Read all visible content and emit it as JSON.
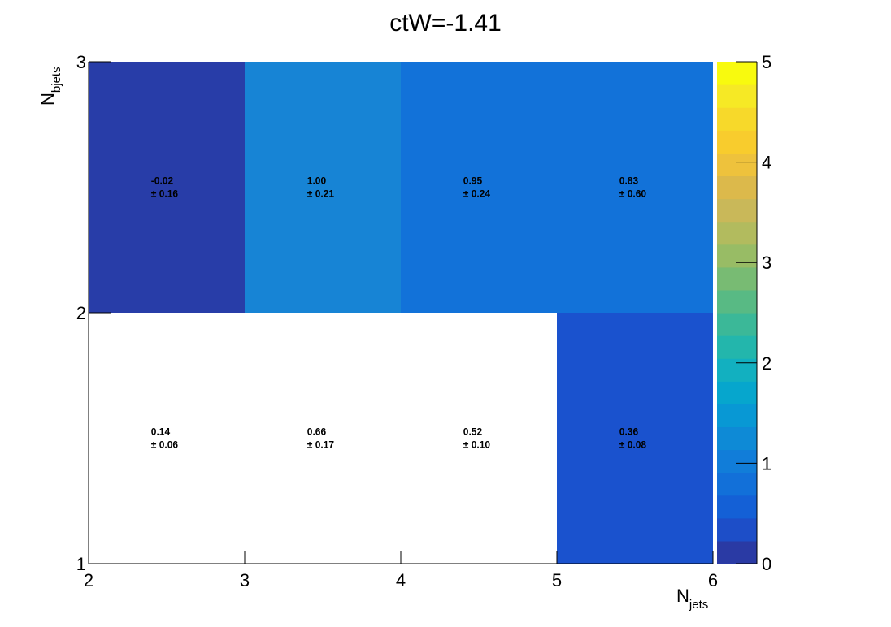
{
  "chart_data": {
    "type": "heatmap",
    "title": "ctW=-1.41",
    "xlabel": {
      "main": "N",
      "sub": "jets"
    },
    "ylabel": {
      "main": "N",
      "sub": "bjets"
    },
    "x_edges": [
      2,
      3,
      4,
      5,
      6
    ],
    "y_edges": [
      1,
      2,
      3
    ],
    "xlim": [
      2,
      6
    ],
    "ylim": [
      1,
      3
    ],
    "x_tick_labels": [
      "2",
      "3",
      "4",
      "5",
      "6"
    ],
    "y_tick_labels": [
      "1",
      "2",
      "3"
    ],
    "colorbar": {
      "range": [
        0,
        5
      ],
      "tick_labels": [
        "0",
        "1",
        "2",
        "3",
        "4",
        "5"
      ],
      "colors": [
        "#2a3aa4",
        "#1d4ec8",
        "#1460d6",
        "#1270d9",
        "#117dd9",
        "#0e8ad6",
        "#0898d4",
        "#06a6cd",
        "#12b0c0",
        "#23b6ac",
        "#3bb898",
        "#58ba84",
        "#78bb73",
        "#98bc65",
        "#b2bb5e",
        "#c9b859",
        "#dcb94b",
        "#eec23c",
        "#f8cc2d",
        "#f7d92a",
        "#f6e925",
        "#f8fa0e"
      ]
    },
    "cells": [
      {
        "x": [
          2,
          3
        ],
        "y": [
          2,
          3
        ],
        "value": -0.02,
        "error": 0.16,
        "label": "-0.02",
        "err_label": "± 0.16",
        "color": "#283da8"
      },
      {
        "x": [
          3,
          4
        ],
        "y": [
          2,
          3
        ],
        "value": 1.0,
        "error": 0.21,
        "label": "1.00",
        "err_label": "± 0.21",
        "color": "#1784d5"
      },
      {
        "x": [
          4,
          5
        ],
        "y": [
          2,
          3
        ],
        "value": 0.95,
        "error": 0.24,
        "label": "0.95",
        "err_label": "± 0.24",
        "color": "#1272d9"
      },
      {
        "x": [
          5,
          6
        ],
        "y": [
          2,
          3
        ],
        "value": 0.83,
        "error": 0.6,
        "label": "0.83",
        "err_label": "± 0.60",
        "color": "#1272d9"
      },
      {
        "x": [
          2,
          3
        ],
        "y": [
          1,
          2
        ],
        "value": 0.14,
        "error": 0.06,
        "label": "0.14",
        "err_label": "± 0.06",
        "color": "#ffffff"
      },
      {
        "x": [
          3,
          4
        ],
        "y": [
          1,
          2
        ],
        "value": 0.66,
        "error": 0.17,
        "label": "0.66",
        "err_label": "± 0.17",
        "color": "#ffffff"
      },
      {
        "x": [
          4,
          5
        ],
        "y": [
          1,
          2
        ],
        "value": 0.52,
        "error": 0.1,
        "label": "0.52",
        "err_label": "± 0.10",
        "color": "#ffffff"
      },
      {
        "x": [
          5,
          6
        ],
        "y": [
          1,
          2
        ],
        "value": 0.36,
        "error": 0.08,
        "label": "0.36",
        "err_label": "± 0.08",
        "color": "#1a52ce"
      }
    ]
  }
}
